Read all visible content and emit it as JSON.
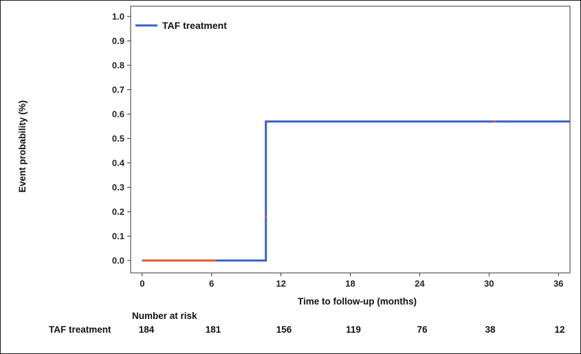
{
  "chart_data": {
    "type": "line",
    "xlabel": "Time to follow-up (months)",
    "ylabel": "Event probability (%)",
    "xlim": [
      -1,
      37
    ],
    "ylim": [
      0,
      1.0
    ],
    "x_ticks": [
      0,
      6,
      12,
      18,
      24,
      30,
      36
    ],
    "y_ticks": [
      0.0,
      0.1,
      0.2,
      0.3,
      0.4,
      0.5,
      0.6,
      0.7,
      0.8,
      0.9,
      1.0
    ],
    "x_tick_labels": [
      "0",
      "6",
      "12",
      "18",
      "24",
      "30",
      "36"
    ],
    "y_tick_labels": [
      "0.0",
      "0.1",
      "0.2",
      "0.3",
      "0.4",
      "0.5",
      "0.6",
      "0.7",
      "0.8",
      "0.9",
      "1.0"
    ],
    "legend_position": "top-left",
    "series": [
      {
        "name": "TAF treatment",
        "color": "#3a5fc8",
        "step": true,
        "points": [
          [
            0,
            0.0
          ],
          [
            10.7,
            0.0
          ],
          [
            10.7,
            0.57
          ],
          [
            37,
            0.57
          ]
        ],
        "censor_color": "#e05a30",
        "censored": [
          0.1,
          0.3,
          0.5,
          0.7,
          0.9,
          1.1,
          1.3,
          1.5,
          1.7,
          1.9,
          2.1,
          2.3,
          2.5,
          2.7,
          2.9,
          3.1,
          3.3,
          3.5,
          3.7,
          3.9,
          4.1,
          4.3,
          4.5,
          4.7,
          4.9,
          5.1,
          5.3,
          5.5,
          5.7,
          5.9,
          6.1,
          6.3,
          30.5
        ],
        "censored_y": [
          0,
          0,
          0,
          0,
          0,
          0,
          0,
          0,
          0,
          0,
          0,
          0,
          0,
          0,
          0,
          0,
          0,
          0,
          0,
          0,
          0,
          0,
          0,
          0,
          0,
          0,
          0,
          0,
          0,
          0,
          0,
          0,
          0.57
        ]
      }
    ],
    "risk_table": {
      "header": "Number at risk",
      "rows": [
        {
          "label": "TAF treatment",
          "values": [
            "184",
            "181",
            "156",
            "119",
            "76",
            "38",
            "12"
          ]
        }
      ]
    }
  }
}
